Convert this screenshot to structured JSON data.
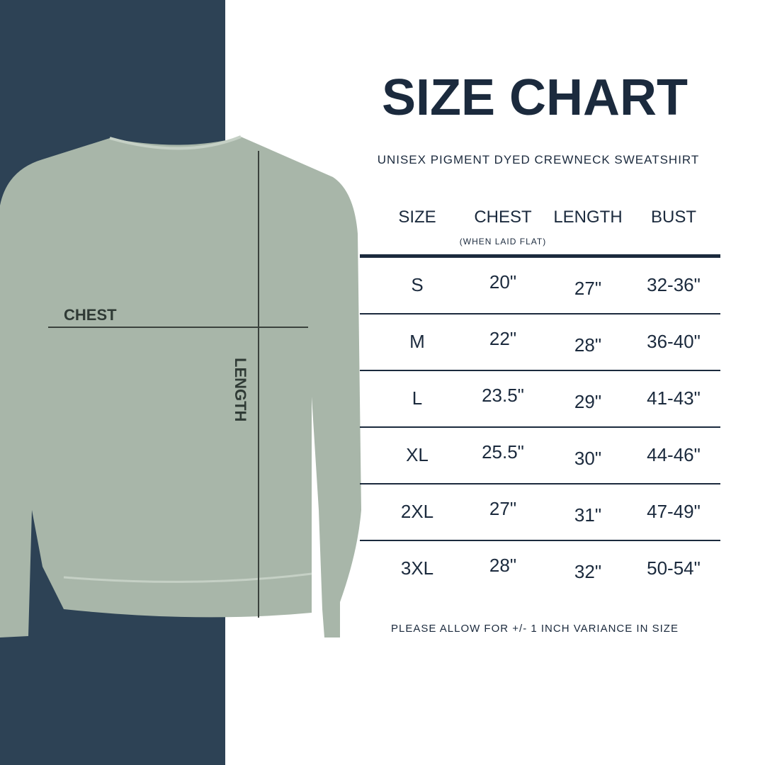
{
  "title": "SIZE CHART",
  "subtitle": "UNISEX PIGMENT DYED CREWNECK SWEATSHIRT",
  "headers": {
    "size": "SIZE",
    "chest": "CHEST",
    "chest_note": "(WHEN LAID FLAT)",
    "length": "LENGTH",
    "bust": "BUST"
  },
  "rows": [
    {
      "size": "S",
      "chest": "20\"",
      "length": "27\"",
      "bust": "32-36\""
    },
    {
      "size": "M",
      "chest": "22\"",
      "length": "28\"",
      "bust": "36-40\""
    },
    {
      "size": "L",
      "chest": "23.5\"",
      "length": "29\"",
      "bust": "41-43\""
    },
    {
      "size": "XL",
      "chest": "25.5\"",
      "length": "30\"",
      "bust": "44-46\""
    },
    {
      "size": "2XL",
      "chest": "27\"",
      "length": "31\"",
      "bust": "47-49\""
    },
    {
      "size": "3XL",
      "chest": "28\"",
      "length": "32\"",
      "bust": "50-54\""
    }
  ],
  "note": "PLEASE ALLOW FOR +/- 1 INCH VARIANCE IN SIZE",
  "illustration": {
    "chest_label": "CHEST",
    "length_label": "LENGTH"
  },
  "colors": {
    "panel": "#2d4255",
    "text": "#1b2a3d",
    "garment": "#a8b6a9"
  }
}
